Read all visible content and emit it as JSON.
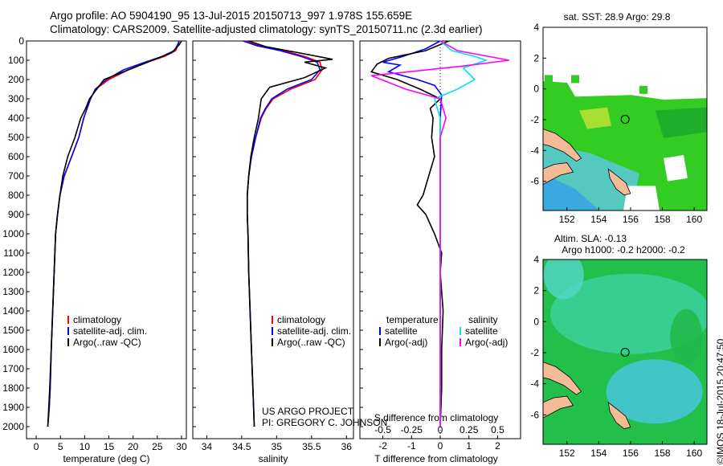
{
  "header": {
    "line1": "Argo profile: AO 5904190_95 13-Jul-2015 20150713_997 1.978S 155.659E",
    "line2": "Climatology: CARS2009. Satellite-adjusted climatology: synTS_20150711.nc (2.3d earlier)"
  },
  "colors": {
    "climatology": "#ff0000",
    "satellite": "#0000ff",
    "argo": "#000000",
    "satellite_sal": "#00e5ee",
    "argo_sal": "#ff00ff"
  },
  "stamp": "©IMOS 18-Jul-2015 20:47:50",
  "chart_data": [
    {
      "type": "line",
      "xlabel": "temperature (deg C)",
      "xticks": [
        0,
        5,
        10,
        15,
        20,
        25,
        30
      ],
      "xlim": [
        -2,
        31
      ],
      "ylim": [
        0,
        2100
      ],
      "yinverted": true,
      "yticks": [
        0,
        100,
        200,
        300,
        400,
        500,
        600,
        700,
        800,
        900,
        1000,
        1100,
        1200,
        1300,
        1400,
        1500,
        1600,
        1700,
        1800,
        1900,
        2000
      ],
      "legend": [
        "climatology",
        "satellite-adj. clim.",
        "Argo(..raw -QC)"
      ],
      "series": [
        {
          "name": "climatology",
          "color": "red",
          "x": [
            29.5,
            29.3,
            28.8,
            26.5,
            23.0,
            19.0,
            15.0,
            12.3,
            11.2,
            10.5,
            9.8,
            8.8,
            7.3,
            5.8,
            4.9,
            4.4,
            4.0,
            3.7,
            3.4,
            3.1,
            2.9,
            2.7,
            2.4
          ],
          "y": [
            0,
            20,
            50,
            80,
            110,
            150,
            200,
            250,
            300,
            350,
            400,
            500,
            600,
            700,
            800,
            900,
            1000,
            1200,
            1400,
            1600,
            1800,
            1900,
            2000
          ]
        },
        {
          "name": "satellite-adj. clim.",
          "color": "blue",
          "x": [
            29.5,
            29.2,
            28.5,
            26.0,
            22.5,
            18.0,
            14.5,
            12.2,
            11.2,
            10.5,
            9.8,
            8.8,
            7.3,
            5.8,
            4.9,
            4.4,
            4.0,
            3.7,
            3.4,
            3.1,
            2.9,
            2.7,
            2.4
          ],
          "y": [
            0,
            20,
            50,
            80,
            110,
            150,
            200,
            250,
            300,
            350,
            400,
            500,
            600,
            700,
            800,
            900,
            1000,
            1200,
            1400,
            1600,
            1800,
            1900,
            2000
          ]
        },
        {
          "name": "Argo(..raw -QC)",
          "color": "black",
          "x": [
            30.0,
            29.5,
            28.0,
            24.0,
            19.0,
            14.0,
            12.5,
            11.0,
            10.2,
            9.2,
            8.0,
            6.5,
            5.5,
            4.9,
            4.4,
            4.0,
            3.7,
            3.4,
            3.1,
            2.8,
            2.4
          ],
          "y": [
            0,
            20,
            60,
            100,
            150,
            200,
            250,
            300,
            350,
            400,
            500,
            600,
            700,
            800,
            900,
            1000,
            1200,
            1400,
            1600,
            1800,
            2000
          ]
        }
      ]
    },
    {
      "type": "line",
      "xlabel": "salinity",
      "xticks": [
        34,
        34.5,
        35,
        35.5,
        36
      ],
      "xlim": [
        33.8,
        36.1
      ],
      "ylim": [
        0,
        2100
      ],
      "yinverted": true,
      "legend": [
        "climatology",
        "satellite-adj. clim.",
        "Argo(..raw -QC)"
      ],
      "annotation": [
        "US ARGO PROJECT",
        "PI: GREGORY C. JOHNSON"
      ],
      "series": [
        {
          "name": "climatology",
          "color": "red",
          "x": [
            34.55,
            34.75,
            35.1,
            35.4,
            35.62,
            35.65,
            35.55,
            35.2,
            34.95,
            34.85,
            34.78,
            34.7,
            34.64,
            34.6,
            34.58,
            34.58,
            34.59,
            34.6,
            34.62,
            34.64,
            34.66,
            34.67,
            34.68
          ],
          "y": [
            0,
            25,
            50,
            80,
            110,
            150,
            200,
            250,
            300,
            350,
            400,
            500,
            600,
            700,
            800,
            900,
            1000,
            1200,
            1400,
            1600,
            1800,
            1900,
            2000
          ]
        },
        {
          "name": "satellite-adj. clim.",
          "color": "blue",
          "x": [
            34.52,
            34.72,
            35.05,
            35.35,
            35.58,
            35.62,
            35.5,
            35.15,
            34.93,
            34.84,
            34.77,
            34.7,
            34.64,
            34.6,
            34.58,
            34.58,
            34.59,
            34.6,
            34.62,
            34.64,
            34.66,
            34.67,
            34.68
          ],
          "y": [
            0,
            25,
            50,
            80,
            110,
            150,
            200,
            250,
            300,
            350,
            400,
            500,
            600,
            700,
            800,
            900,
            1000,
            1200,
            1400,
            1600,
            1800,
            1900,
            2000
          ]
        },
        {
          "name": "Argo(..raw -QC)",
          "color": "black",
          "x": [
            34.6,
            34.85,
            35.3,
            35.8,
            35.4,
            35.7,
            35.4,
            34.9,
            34.78,
            34.74,
            34.68,
            34.63,
            34.6,
            34.58,
            34.58,
            34.59,
            34.6,
            34.62,
            34.64,
            34.66,
            34.68
          ],
          "y": [
            0,
            30,
            60,
            95,
            110,
            140,
            190,
            240,
            300,
            400,
            500,
            600,
            700,
            800,
            900,
            1000,
            1200,
            1400,
            1600,
            1800,
            2000
          ]
        }
      ]
    },
    {
      "type": "line",
      "xlabel": "T difference from climatology",
      "xlabel_top": "S difference from climatology",
      "xticks_T": [
        -2,
        -1,
        0,
        1,
        2
      ],
      "xticks_S": [
        -0.5,
        -0.25,
        0,
        0.25,
        0.5
      ],
      "xlim_T": [
        -2.8,
        2.8
      ],
      "ylim": [
        0,
        2100
      ],
      "yinverted": true,
      "legend": {
        "temperature_header": "temperature",
        "salinity_header": "salinity",
        "satellite": "satellite",
        "argo": "Argo(-adj)"
      },
      "series": [
        {
          "name": "temperature satellite",
          "color": "blue",
          "x": [
            0,
            -0.5,
            -1.3,
            -2.0,
            -1.4,
            -1.8,
            -0.8,
            -0.2,
            0.05,
            0,
            0,
            0,
            0,
            0,
            0,
            0,
            0
          ],
          "y": [
            0,
            40,
            80,
            110,
            125,
            160,
            200,
            230,
            280,
            400,
            600,
            800,
            1000,
            1300,
            1600,
            1800,
            1950
          ]
        },
        {
          "name": "temperature Argo(-adj)",
          "color": "black",
          "x": [
            0.3,
            -0.5,
            -1.8,
            -2.2,
            -2.4,
            -1.5,
            -0.7,
            0,
            -0.35,
            -0.25,
            -0.3,
            -0.2,
            -0.4,
            -0.6,
            -0.8,
            -0.5,
            -0.2,
            0.05,
            0,
            0.1,
            0.05,
            0.05,
            0
          ],
          "y": [
            0,
            50,
            90,
            120,
            160,
            200,
            250,
            300,
            350,
            400,
            500,
            600,
            700,
            800,
            850,
            900,
            1000,
            1100,
            1200,
            1400,
            1600,
            1800,
            2000
          ]
        },
        {
          "name": "salinity satellite",
          "color": "cyan",
          "x": [
            0,
            0.1,
            0.3,
            0.4,
            0.2,
            0.3,
            0.15,
            -0.05,
            0,
            0,
            0,
            0,
            0,
            0,
            0,
            0,
            0
          ],
          "y": [
            0,
            50,
            80,
            100,
            140,
            200,
            250,
            300,
            400,
            500,
            700,
            1000,
            1300,
            1600,
            1800,
            1900,
            2000
          ]
        },
        {
          "name": "salinity Argo(-adj)",
          "color": "magenta",
          "x": [
            0,
            0.15,
            0.6,
            0.2,
            -0.6,
            -0.3,
            0,
            0.05,
            0,
            0,
            0,
            0,
            0,
            0,
            0
          ],
          "y": [
            0,
            50,
            100,
            130,
            180,
            250,
            300,
            400,
            500,
            700,
            1000,
            1300,
            1600,
            1800,
            2000
          ]
        }
      ]
    },
    {
      "type": "heatmap",
      "title": "sat. SST: 28.9 Argo: 29.8",
      "xticks": [
        152,
        154,
        156,
        158,
        160
      ],
      "yticks": [
        4,
        2,
        0,
        -2,
        -4,
        -6
      ],
      "xlim": [
        150.5,
        160.8
      ],
      "ylim": [
        -7.9,
        4
      ],
      "marker": {
        "lon": 155.659,
        "lat": -1.978
      }
    },
    {
      "type": "heatmap",
      "title": "Altim. SLA: -0.13",
      "subtitle": "Argo h1000: -0.2 h2000: -0.2",
      "xticks": [
        152,
        154,
        156,
        158,
        160
      ],
      "yticks": [
        4,
        2,
        0,
        -2,
        -4,
        -6
      ],
      "xlim": [
        150.5,
        160.8
      ],
      "ylim": [
        -7.9,
        4
      ],
      "marker": {
        "lon": 155.659,
        "lat": -1.978
      }
    }
  ]
}
